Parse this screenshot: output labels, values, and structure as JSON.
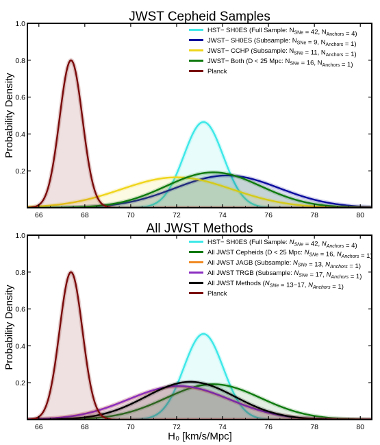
{
  "figure": {
    "xlabel": "H₀ [km/s/Mpc]",
    "ylabel": "Probability Density"
  },
  "chart_data": [
    {
      "type": "line",
      "title": "JWST Cepheid Samples",
      "ylabel": "Probability Density",
      "xlim": [
        65.5,
        80.5
      ],
      "ylim": [
        0,
        1.0
      ],
      "x_ticks": [
        "66",
        "68",
        "70",
        "72",
        "74",
        "76",
        "78",
        "80"
      ],
      "y_ticks": [
        "0.2",
        "0.4",
        "0.6",
        "0.8",
        "1.0"
      ],
      "legend_position": "top-right",
      "series": [
        {
          "name": "HST− SH0ES (Full Sample: N_SNe = 42, N_Anchors = 4)",
          "legend_parts": [
            [
              "HST− SH0ES (Full Sample: N",
              ""
            ],
            [
              "SNe",
              "sub"
            ],
            [
              " = 42, N",
              ""
            ],
            [
              "Anchors",
              "sub"
            ],
            [
              " = 4)",
              ""
            ]
          ],
          "color": "#3ee8e8",
          "mean": 73.17,
          "peak": 0.465
        },
        {
          "name": "JWST− SH0ES (Subsample: N_SNe = 9, N_Anchors = 1)",
          "legend_parts": [
            [
              "JWST− SH0ES (Subsample: N",
              ""
            ],
            [
              "SNe",
              "sub"
            ],
            [
              " = 9, N",
              ""
            ],
            [
              "Anchors",
              "sub"
            ],
            [
              " = 1)",
              ""
            ]
          ],
          "color": "#0a0a9e",
          "mean": 74.2,
          "peak": 0.175
        },
        {
          "name": "JWST− CCHP (Subsample: N_SNe = 11, N_Anchors = 1)",
          "legend_parts": [
            [
              "JWST− CCHP (Subsample: N",
              ""
            ],
            [
              "SNe",
              "sub"
            ],
            [
              " = 11, N",
              ""
            ],
            [
              "Anchors",
              "sub"
            ],
            [
              " = 1)",
              ""
            ]
          ],
          "color": "#efd51c",
          "mean": 72.0,
          "peak": 0.165
        },
        {
          "name": "JWST− Both (D < 25 Mpc: N_SNe = 16, N_Anchors = 1)",
          "legend_parts": [
            [
              "JWST− Both (D < 25 Mpc: N",
              ""
            ],
            [
              "SNe",
              "sub"
            ],
            [
              " = 16, N",
              ""
            ],
            [
              "Anchors",
              "sub"
            ],
            [
              " = 1)",
              ""
            ]
          ],
          "color": "#0f7a0f",
          "mean": 73.6,
          "peak": 0.192
        },
        {
          "name": "Planck",
          "legend_parts": [
            [
              "Planck",
              ""
            ]
          ],
          "color": "#7a0a0a",
          "mean": 67.4,
          "peak": 0.8
        }
      ]
    },
    {
      "type": "line",
      "title": "All JWST Methods",
      "ylabel": "Probability Density",
      "xlabel": "H₀ [km/s/Mpc]",
      "xlim": [
        65.5,
        80.5
      ],
      "ylim": [
        0,
        1.0
      ],
      "x_ticks": [
        "66",
        "68",
        "70",
        "72",
        "74",
        "76",
        "78",
        "80"
      ],
      "y_ticks": [
        "0.2",
        "0.4",
        "0.6",
        "0.8",
        "1.0"
      ],
      "legend_position": "top-right",
      "series": [
        {
          "name": "HST− SH0ES (Full Sample: N_SNe = 42, N_Anchors = 4)",
          "legend_parts": [
            [
              "HST− SH0ES (Full Sample: ",
              ""
            ],
            [
              "N",
              "i"
            ],
            [
              "SNe",
              "isub"
            ],
            [
              " = 42, ",
              ""
            ],
            [
              "N",
              "i"
            ],
            [
              "Anchors",
              "isub"
            ],
            [
              " = 4)",
              ""
            ]
          ],
          "color": "#3ee8e8",
          "mean": 73.17,
          "peak": 0.465
        },
        {
          "name": "All JWST Cepheids (D < 25 Mpc: N_SNe = 16, N_Anchors = 1)",
          "legend_parts": [
            [
              "All JWST Cepheids (D < 25 Mpc: ",
              ""
            ],
            [
              "N",
              "i"
            ],
            [
              "SNe",
              "isub"
            ],
            [
              " = 16, ",
              ""
            ],
            [
              "N",
              "i"
            ],
            [
              "Anchors",
              "isub"
            ],
            [
              " = 1)",
              ""
            ]
          ],
          "color": "#0f7a0f",
          "mean": 73.6,
          "peak": 0.192
        },
        {
          "name": "All JWST JAGB (Subsample: N_SNe = 13, N_Anchors = 1)",
          "legend_parts": [
            [
              "All JWST JAGB (Subsample: ",
              ""
            ],
            [
              "N",
              "i"
            ],
            [
              "SNe",
              "isub"
            ],
            [
              " = 13, ",
              ""
            ],
            [
              "N",
              "i"
            ],
            [
              "Anchors",
              "isub"
            ],
            [
              " = 1)",
              ""
            ]
          ],
          "color": "#f08a24",
          "mean": 72.1,
          "peak": 0.18
        },
        {
          "name": "All JWST TRGB (Subsample: N_SNe = 17, N_Anchors = 1)",
          "legend_parts": [
            [
              "All JWST TRGB (Subsample: ",
              ""
            ],
            [
              "N",
              "i"
            ],
            [
              "SNe",
              "isub"
            ],
            [
              " = 17, ",
              ""
            ],
            [
              "N",
              "i"
            ],
            [
              "Anchors",
              "isub"
            ],
            [
              " = 1)",
              ""
            ]
          ],
          "color": "#8a2ec0",
          "mean": 72.1,
          "peak": 0.182
        },
        {
          "name": "All JWST Methods (N_SNe = 13−17, N_Anchors = 1)",
          "legend_parts": [
            [
              "All JWST Methods (",
              ""
            ],
            [
              "N",
              "i"
            ],
            [
              "SNe",
              "isub"
            ],
            [
              " = 13−17, ",
              ""
            ],
            [
              "N",
              "i"
            ],
            [
              "Anchors",
              "isub"
            ],
            [
              " = 1)",
              ""
            ]
          ],
          "color": "#000000",
          "mean": 72.6,
          "peak": 0.205
        },
        {
          "name": "Planck",
          "legend_parts": [
            [
              "Planck",
              ""
            ]
          ],
          "color": "#7a0a0a",
          "mean": 67.4,
          "peak": 0.8
        }
      ]
    }
  ]
}
